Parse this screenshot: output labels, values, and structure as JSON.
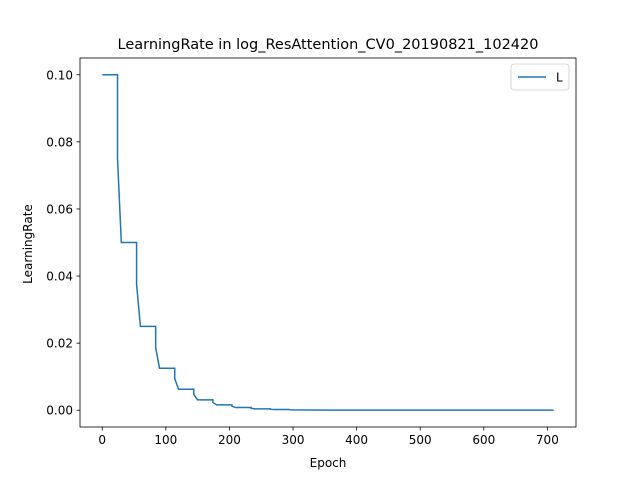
{
  "chart_data": {
    "type": "line",
    "title": "LearningRate in log_ResAttention_CV0_20190821_102420",
    "xlabel": "Epoch",
    "ylabel": "LearningRate",
    "xlim": [
      -35,
      745
    ],
    "ylim": [
      -0.005,
      0.105
    ],
    "xticks": [
      0,
      100,
      200,
      300,
      400,
      500,
      600,
      700
    ],
    "yticks": [
      0.0,
      0.02,
      0.04,
      0.06,
      0.08,
      0.1
    ],
    "ytick_labels": [
      "0.00",
      "0.02",
      "0.04",
      "0.06",
      "0.08",
      "0.10"
    ],
    "xtick_labels": [
      "0",
      "100",
      "200",
      "300",
      "400",
      "500",
      "600",
      "700"
    ],
    "grid": false,
    "legend_position": "top-right",
    "series": [
      {
        "name": "L",
        "color": "#1f77b4",
        "x": [
          0,
          24,
          24,
          30,
          30,
          54,
          54,
          60,
          60,
          84,
          84,
          90,
          90,
          114,
          114,
          120,
          120,
          144,
          144,
          150,
          150,
          174,
          174,
          180,
          180,
          204,
          204,
          210,
          210,
          234,
          234,
          240,
          240,
          264,
          264,
          270,
          270,
          294,
          294,
          300,
          300,
          330,
          330,
          360,
          360,
          710
        ],
        "y": [
          0.1,
          0.1,
          0.075,
          0.05,
          0.05,
          0.05,
          0.0375,
          0.025,
          0.025,
          0.025,
          0.0187,
          0.0125,
          0.0125,
          0.0125,
          0.0094,
          0.00625,
          0.00625,
          0.00625,
          0.0047,
          0.0031,
          0.0031,
          0.0031,
          0.0023,
          0.0016,
          0.0016,
          0.0016,
          0.0012,
          0.0008,
          0.0008,
          0.0008,
          0.0006,
          0.0004,
          0.0004,
          0.0004,
          0.0003,
          0.0002,
          0.0002,
          0.0002,
          0.00015,
          0.0001,
          0.0001,
          5e-05,
          5e-05,
          2e-05,
          2e-05,
          2e-05
        ]
      }
    ]
  }
}
